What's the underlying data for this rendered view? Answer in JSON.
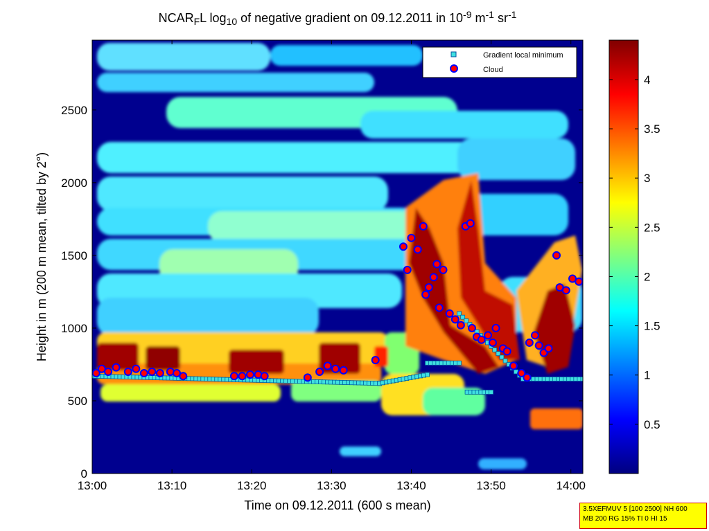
{
  "chart_data": {
    "type": "heatmap",
    "title_parts": [
      {
        "text": "NCAR",
        "shift": "base"
      },
      {
        "text": "F",
        "shift": "sub"
      },
      {
        "text": "L log",
        "shift": "base"
      },
      {
        "text": "10",
        "shift": "sub"
      },
      {
        "text": " of negative gradient on 09.12.2011 in 10",
        "shift": "base"
      },
      {
        "text": "-9",
        "shift": "sup"
      },
      {
        "text": " m",
        "shift": "base"
      },
      {
        "text": "-1",
        "shift": "sup"
      },
      {
        "text": " sr",
        "shift": "base"
      },
      {
        "text": "-1",
        "shift": "sup"
      }
    ],
    "xlabel": "Time on 09.12.2011 (600 s mean)",
    "ylabel": "Height in m (200 m mean, tilted by 2°)",
    "x_ticks": [
      "13:00",
      "13:10",
      "13:20",
      "13:30",
      "13:40",
      "13:50",
      "14:00"
    ],
    "x_range_min": [
      0,
      61.5
    ],
    "y_ticks": [
      0,
      500,
      1000,
      1500,
      2000,
      2500
    ],
    "y_range": [
      0,
      2980
    ],
    "colorbar_ticks": [
      "0.5",
      "1",
      "1.5",
      "2",
      "2.5",
      "3",
      "3.5",
      "4"
    ],
    "colorbar_range": [
      0,
      4.4
    ],
    "colormap": "jet",
    "legend": {
      "placement": "top-right",
      "entries": [
        {
          "label": "Gradient local minimum",
          "marker": "square",
          "color": "#40e0e0"
        },
        {
          "label": "Cloud",
          "marker": "circle",
          "color": "#ff0000",
          "edge": "#0000ff"
        }
      ]
    },
    "gradient_minimum_series": {
      "segments": [
        {
          "t": [
            0,
            36
          ],
          "h": [
            670,
            620
          ]
        },
        {
          "t": [
            36,
            42
          ],
          "h": [
            620,
            680
          ]
        },
        {
          "t": [
            42,
            46
          ],
          "h": [
            760,
            760
          ]
        },
        {
          "t": [
            47,
            50
          ],
          "h": [
            560,
            560
          ]
        },
        {
          "t": [
            46,
            54
          ],
          "h": [
            1100,
            650
          ]
        },
        {
          "t": [
            54,
            61.5
          ],
          "h": [
            650,
            650
          ]
        }
      ]
    },
    "cloud_points": [
      [
        0.5,
        690
      ],
      [
        1.2,
        720
      ],
      [
        2,
        700
      ],
      [
        3,
        730
      ],
      [
        4.5,
        700
      ],
      [
        5.5,
        720
      ],
      [
        6.5,
        690
      ],
      [
        7.5,
        700
      ],
      [
        8.5,
        690
      ],
      [
        9.8,
        700
      ],
      [
        10.6,
        690
      ],
      [
        11.4,
        670
      ],
      [
        17.8,
        670
      ],
      [
        18.8,
        670
      ],
      [
        19.8,
        680
      ],
      [
        20.8,
        680
      ],
      [
        21.6,
        670
      ],
      [
        27,
        660
      ],
      [
        28.5,
        700
      ],
      [
        29.5,
        740
      ],
      [
        30.5,
        720
      ],
      [
        31.5,
        710
      ],
      [
        35.5,
        780
      ],
      [
        39,
        1560
      ],
      [
        39.5,
        1400
      ],
      [
        40,
        1620
      ],
      [
        40.8,
        1540
      ],
      [
        41.5,
        1700
      ],
      [
        42.2,
        1280
      ],
      [
        41.8,
        1230
      ],
      [
        42.8,
        1350
      ],
      [
        43.2,
        1440
      ],
      [
        44,
        1400
      ],
      [
        43.5,
        1140
      ],
      [
        44.8,
        1100
      ],
      [
        45.5,
        1060
      ],
      [
        46.2,
        1020
      ],
      [
        46.8,
        1700
      ],
      [
        47.4,
        1720
      ],
      [
        47.6,
        1000
      ],
      [
        48.2,
        940
      ],
      [
        48.8,
        920
      ],
      [
        49.6,
        950
      ],
      [
        50.2,
        900
      ],
      [
        50.6,
        1000
      ],
      [
        51.5,
        860
      ],
      [
        52,
        840
      ],
      [
        52.8,
        740
      ],
      [
        53.8,
        690
      ],
      [
        54.5,
        660
      ],
      [
        54.8,
        900
      ],
      [
        55.5,
        950
      ],
      [
        56,
        880
      ],
      [
        56.6,
        830
      ],
      [
        57.2,
        860
      ],
      [
        58.2,
        1500
      ],
      [
        58.6,
        1280
      ],
      [
        59.4,
        1260
      ],
      [
        60.2,
        1340
      ],
      [
        61,
        1320
      ]
    ]
  },
  "infobox": {
    "line1": "3.5XEFMUV 5 [100 2500] NH 600",
    "line2": "MB 200 RG 15% TI 0 HI 15"
  }
}
